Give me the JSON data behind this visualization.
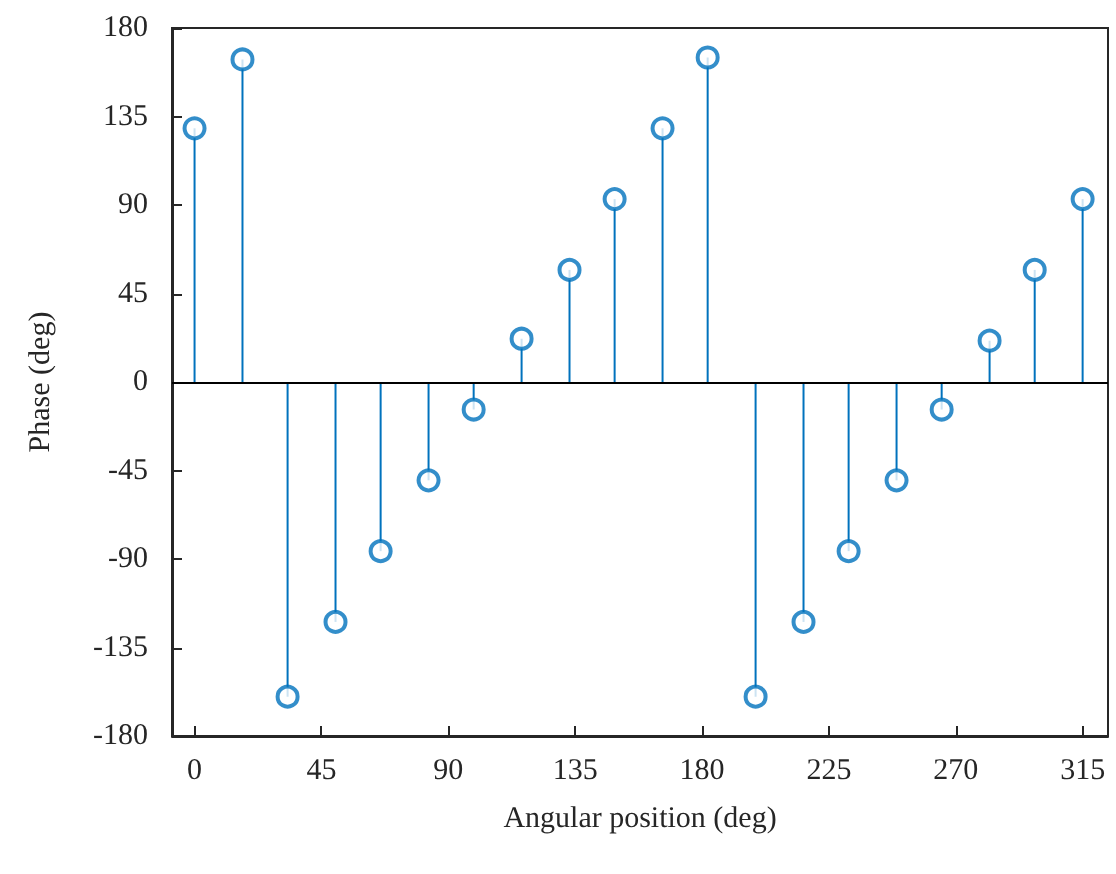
{
  "chart_data": {
    "type": "lollipop",
    "xlabel": "Angular position (deg)",
    "ylabel": "Phase (deg)",
    "x": [
      0,
      17,
      33,
      50,
      66,
      83,
      99,
      116,
      133,
      149,
      166,
      182,
      199,
      216,
      232,
      249,
      265,
      282,
      298,
      315
    ],
    "values": [
      129,
      164,
      -160,
      -122,
      -86,
      -50,
      -14,
      22,
      57,
      93,
      129,
      165,
      -160,
      -122,
      -86,
      -50,
      -14,
      21,
      57,
      93
    ],
    "color": "#0072bd",
    "marker": "circle",
    "xlim": [
      -8,
      324
    ],
    "xticks": [
      0,
      45,
      90,
      135,
      180,
      225,
      270,
      315
    ],
    "ylim": [
      -180,
      180
    ],
    "yticks": [
      -180,
      -135,
      -90,
      -45,
      0,
      45,
      90,
      135,
      180
    ],
    "grid": false,
    "ref_lines": [
      {
        "axis": "y",
        "value": 0,
        "color": "#000000"
      }
    ]
  }
}
